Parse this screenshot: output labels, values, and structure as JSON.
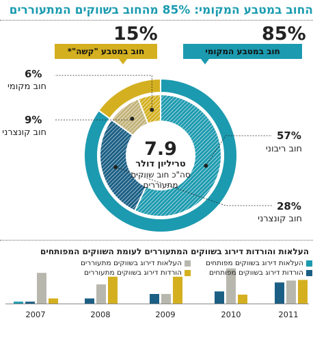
{
  "title": "החוב במטבע המקומי: 85% מהחוב בשווקים המתעוררים",
  "colors": {
    "teal": "#1c9aaf",
    "navy": "#1b5f85",
    "gold": "#d4b020",
    "gray": "#b8b7ae"
  },
  "top": {
    "local_pct": "85%",
    "local_tag": "חוב במטבע המקומי",
    "hard_pct": "15%",
    "hard_tag": "חוב במטבע \"קשה\"*"
  },
  "center": {
    "value": "7.9",
    "unit": "טריליון דולר",
    "sub1": "סה\"כ חוב שווקים",
    "sub2": "מתעוררים"
  },
  "chart_data": [
    {
      "type": "pie",
      "title": "7.9 טריליון דולר",
      "outer_ring": [
        {
          "name": "חוב במטבע המקומי",
          "value": 85,
          "color": "#1c9aaf"
        },
        {
          "name": "חוב במטבע \"קשה\"*",
          "value": 15,
          "color": "#d4b020"
        }
      ],
      "inner_ring": [
        {
          "name": "חוב ריבוני",
          "value": 57,
          "label": "57%",
          "group": "local"
        },
        {
          "name": "חוב קונצרני",
          "value": 28,
          "label": "28%",
          "group": "local"
        },
        {
          "name": "חוב קונצרני",
          "value": 9,
          "label": "9%",
          "group": "hard"
        },
        {
          "name": "חוב מקומי",
          "value": 6,
          "label": "6%",
          "group": "hard"
        }
      ]
    },
    {
      "type": "bar",
      "title": "העלאות והורדות דירוג בשווקים המתעוררים לעומת השווקים המפותחים",
      "categories": [
        "2011",
        "2010",
        "2009",
        "2008",
        "2007"
      ],
      "series": [
        {
          "name": "העלאות דירוג בשווקים מפותחים",
          "color": "#1c9aaf",
          "values": [
            0,
            0,
            0,
            0,
            3
          ]
        },
        {
          "name": "הורדות דירוג בשווקים מפותחים",
          "color": "#1b5f85",
          "values": [
            33,
            19,
            15,
            8,
            3
          ]
        },
        {
          "name": "העלאות דירוג בשווקים מתעוררים",
          "color": "#b8b7ae",
          "values": [
            36,
            55,
            15,
            30,
            48
          ]
        },
        {
          "name": "הורדות דירוג בשווקים מתעוררים",
          "color": "#d4b020",
          "values": [
            37,
            14,
            42,
            42,
            8
          ]
        }
      ],
      "ylim": [
        0,
        60
      ]
    }
  ]
}
